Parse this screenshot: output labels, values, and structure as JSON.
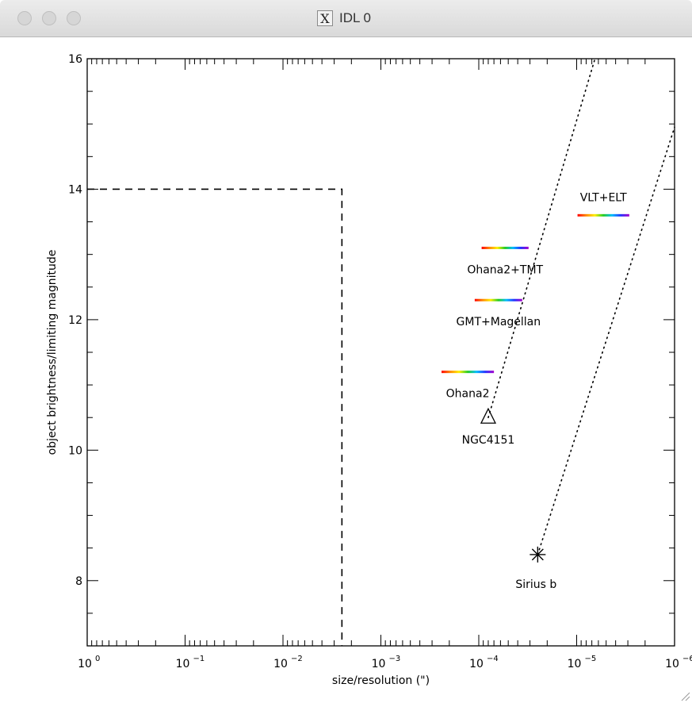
{
  "window": {
    "title": "IDL 0",
    "title_icon": "x11-icon",
    "buttons": [
      "close",
      "minimize",
      "zoom"
    ]
  },
  "chart_data": {
    "type": "scatter",
    "xlabel": "size/resolution (\")",
    "ylabel": "object brightness/limiting magnitude",
    "xscale": "log",
    "xlim": [
      1,
      1e-06
    ],
    "ylim": [
      7,
      16
    ],
    "x_ticks": [
      {
        "value": 1,
        "label": "10",
        "exp": "0"
      },
      {
        "value": 0.1,
        "label": "10",
        "exp": "−1"
      },
      {
        "value": 0.01,
        "label": "10",
        "exp": "−2"
      },
      {
        "value": 0.001,
        "label": "10",
        "exp": "−3"
      },
      {
        "value": 0.0001,
        "label": "10",
        "exp": "−4"
      },
      {
        "value": 1e-05,
        "label": "10",
        "exp": "−5"
      },
      {
        "value": 1e-06,
        "label": "10",
        "exp": "−6"
      }
    ],
    "y_ticks": [
      {
        "value": 8,
        "label": "8"
      },
      {
        "value": 10,
        "label": "10"
      },
      {
        "value": 12,
        "label": "12"
      },
      {
        "value": 14,
        "label": "14"
      },
      {
        "value": 16,
        "label": "16"
      }
    ],
    "limit_box": {
      "x_edge": 0.0025,
      "y_edge": 14,
      "style": "dashed"
    },
    "objects": [
      {
        "name": "NGC4151",
        "x": 8e-05,
        "y": 10.5,
        "marker": "triangle"
      },
      {
        "name": "Sirius b",
        "x": 2.5e-05,
        "y": 8.4,
        "marker": "asterisk"
      }
    ],
    "trend_lines": [
      {
        "from": [
          8e-05,
          10.5
        ],
        "to": [
          6.5e-06,
          16
        ],
        "style": "dotted"
      },
      {
        "from": [
          2.5e-05,
          8.4
        ],
        "to": [
          1e-06,
          14.95
        ],
        "style": "dotted"
      }
    ],
    "instruments": [
      {
        "name": "Ohana2",
        "x_range": [
          0.00024,
          7e-05
        ],
        "y": 11.2
      },
      {
        "name": "GMT+Magellan",
        "x_range": [
          0.00011,
          3.6e-05
        ],
        "y": 12.3
      },
      {
        "name": "Ohana2+TMT",
        "x_range": [
          9.35e-05,
          3.1e-05
        ],
        "y": 13.1
      },
      {
        "name": "VLT+ELT",
        "x_range": [
          9.8e-06,
          2.9e-06
        ],
        "y": 13.6
      }
    ],
    "grid": false,
    "legend": "none"
  }
}
